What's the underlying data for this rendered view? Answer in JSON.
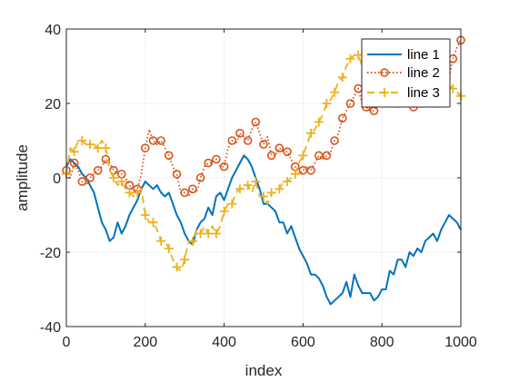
{
  "chart_data": {
    "type": "line",
    "xlabel": "index",
    "ylabel": "amplitude",
    "xlim": [
      0,
      1000
    ],
    "ylim": [
      -40,
      40
    ],
    "xticks": [
      0,
      200,
      400,
      600,
      800,
      1000
    ],
    "yticks": [
      -40,
      -20,
      0,
      20,
      40
    ],
    "xtick_labels": [
      "0",
      "200",
      "400",
      "600",
      "800",
      "1000"
    ],
    "ytick_labels": [
      "-40",
      "-20",
      "0",
      "20",
      "40"
    ],
    "grid": true,
    "legend_position": "top-right",
    "series": [
      {
        "name": "line 1",
        "color": "#0072BD",
        "line_style": "solid",
        "marker": "none",
        "x": [
          0,
          10,
          20,
          30,
          40,
          50,
          60,
          70,
          80,
          90,
          100,
          110,
          120,
          130,
          140,
          150,
          160,
          170,
          180,
          190,
          200,
          210,
          220,
          230,
          240,
          250,
          260,
          270,
          280,
          290,
          300,
          310,
          320,
          330,
          340,
          350,
          360,
          370,
          380,
          390,
          400,
          410,
          420,
          430,
          440,
          450,
          460,
          470,
          480,
          490,
          500,
          510,
          520,
          530,
          540,
          550,
          560,
          570,
          580,
          590,
          600,
          610,
          620,
          630,
          640,
          650,
          660,
          670,
          680,
          690,
          700,
          710,
          720,
          730,
          740,
          750,
          760,
          770,
          780,
          790,
          800,
          810,
          820,
          830,
          840,
          850,
          860,
          870,
          880,
          890,
          900,
          910,
          920,
          930,
          940,
          950,
          960,
          970,
          980,
          990,
          1000
        ],
        "y": [
          3,
          5,
          4,
          3,
          1,
          0,
          -2,
          -4,
          -8,
          -12,
          -14,
          -17,
          -16,
          -12,
          -15,
          -13,
          -10,
          -8,
          -6,
          -3,
          -1,
          -2,
          -3,
          -2,
          -4,
          -5,
          -4,
          -7,
          -10,
          -12,
          -15,
          -17,
          -18,
          -14,
          -12,
          -11,
          -8,
          -10,
          -5,
          -4,
          -6,
          -3,
          0,
          2,
          4,
          6,
          5,
          3,
          0,
          -3,
          -7,
          -7,
          -8,
          -9,
          -12,
          -12,
          -15,
          -13,
          -16,
          -19,
          -21,
          -23,
          -26,
          -26,
          -27,
          -29,
          -32,
          -34,
          -33,
          -32,
          -31,
          -28,
          -32,
          -26,
          -29,
          -31,
          -31,
          -31,
          -33,
          -32,
          -30,
          -30,
          -25,
          -26,
          -22,
          -22,
          -24,
          -20,
          -21,
          -19,
          -20,
          -17,
          -16,
          -15,
          -17,
          -14,
          -12,
          -10,
          -11,
          -12,
          -14
        ]
      },
      {
        "name": "line 2",
        "color": "#D95319",
        "line_style": "dotted",
        "marker": "circle",
        "x": [
          0,
          10,
          20,
          30,
          40,
          50,
          60,
          70,
          80,
          90,
          100,
          110,
          120,
          130,
          140,
          150,
          160,
          170,
          180,
          190,
          200,
          210,
          220,
          230,
          240,
          250,
          260,
          270,
          280,
          290,
          300,
          310,
          320,
          330,
          340,
          350,
          360,
          370,
          380,
          390,
          400,
          410,
          420,
          430,
          440,
          450,
          460,
          470,
          480,
          490,
          500,
          510,
          520,
          530,
          540,
          550,
          560,
          570,
          580,
          590,
          600,
          610,
          620,
          630,
          640,
          650,
          660,
          670,
          680,
          690,
          700,
          710,
          720,
          730,
          740,
          750,
          760,
          770,
          780,
          790,
          800,
          810,
          820,
          830,
          840,
          850,
          860,
          870,
          880,
          890,
          900,
          910,
          920,
          930,
          940,
          950,
          960,
          970,
          980,
          990,
          1000
        ],
        "y": [
          2,
          0,
          4,
          2,
          -1,
          -2,
          0,
          1,
          2,
          3,
          5,
          4,
          2,
          1,
          1,
          0,
          -2,
          -4,
          -3,
          1,
          8,
          13,
          10,
          9,
          10,
          8,
          6,
          3,
          1,
          -4,
          -4,
          -5,
          -3,
          -4,
          0,
          3,
          4,
          4,
          5,
          3,
          3,
          8,
          10,
          9,
          12,
          11,
          10,
          13,
          15,
          12,
          9,
          11,
          6,
          6,
          8,
          7,
          7,
          5,
          3,
          1,
          2,
          3,
          2,
          4,
          6,
          5,
          6,
          7,
          10,
          12,
          16,
          18,
          20,
          22,
          24,
          20,
          19,
          18,
          18,
          20,
          22,
          20,
          21,
          21,
          20,
          22,
          24,
          22,
          19,
          21,
          20,
          19,
          21,
          20,
          20,
          22,
          24,
          27,
          32,
          35,
          37
        ]
      },
      {
        "name": "line 3",
        "color": "#EDB120",
        "line_style": "dashed",
        "marker": "plus",
        "x": [
          0,
          10,
          20,
          30,
          40,
          50,
          60,
          70,
          80,
          90,
          100,
          110,
          120,
          130,
          140,
          150,
          160,
          170,
          180,
          190,
          200,
          210,
          220,
          230,
          240,
          250,
          260,
          270,
          280,
          290,
          300,
          310,
          320,
          330,
          340,
          350,
          360,
          370,
          380,
          390,
          400,
          410,
          420,
          430,
          440,
          450,
          460,
          470,
          480,
          490,
          500,
          510,
          520,
          530,
          540,
          550,
          560,
          570,
          580,
          590,
          600,
          610,
          620,
          630,
          640,
          650,
          660,
          670,
          680,
          690,
          700,
          710,
          720,
          730,
          740,
          750,
          760,
          770,
          780,
          790,
          800,
          810,
          820,
          830,
          840,
          850,
          860,
          870,
          880,
          890,
          900,
          910,
          920,
          930,
          940,
          950,
          960,
          970,
          980,
          990,
          1000
        ],
        "y": [
          1,
          8,
          7,
          10,
          10,
          9,
          9,
          9,
          8,
          10,
          8,
          2,
          0,
          -2,
          -1,
          -3,
          -4,
          -5,
          -4,
          -3,
          -10,
          -12,
          -12,
          -14,
          -17,
          -17,
          -19,
          -22,
          -24,
          -25,
          -22,
          -17,
          -17,
          -14,
          -15,
          -13,
          -15,
          -13,
          -15,
          -13,
          -9,
          -7,
          -7,
          -4,
          -3,
          -2,
          -2,
          -4,
          -1,
          -5,
          -5,
          -7,
          -4,
          -4,
          -3,
          -1,
          -1,
          0,
          1,
          4,
          6,
          9,
          12,
          13,
          15,
          17,
          20,
          21,
          23,
          26,
          27,
          30,
          32,
          33,
          33,
          30,
          31,
          28,
          26,
          27,
          26,
          27,
          23,
          23,
          21,
          22,
          21,
          21,
          20,
          19,
          22,
          22,
          25,
          27,
          28,
          25,
          25,
          25,
          24,
          23,
          22
        ]
      }
    ]
  }
}
